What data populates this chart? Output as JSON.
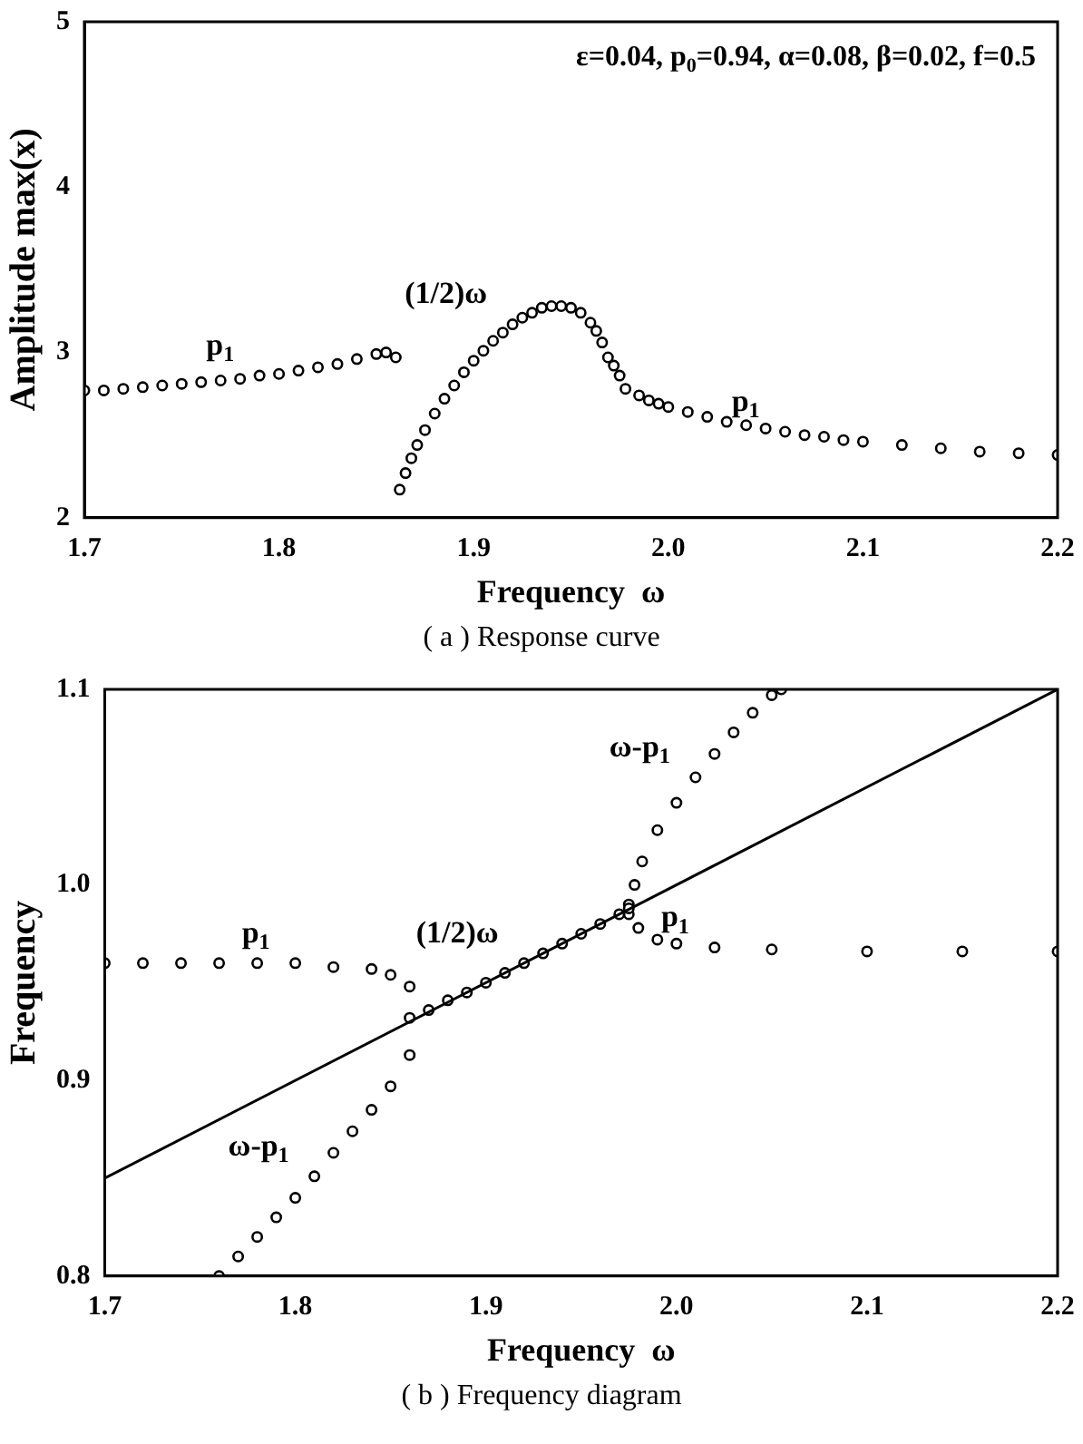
{
  "chart_data": [
    {
      "type": "scatter",
      "title": "( a )  Response curve",
      "xlabel": "Frequency  ω",
      "ylabel": "Amplitude max(x)",
      "xlim": [
        1.7,
        2.2
      ],
      "xticks": [
        1.7,
        1.8,
        1.9,
        {
          "value": 2,
          "label": "2.0"
        },
        2.1,
        2.2
      ],
      "ylim": [
        2,
        5
      ],
      "yticks": [
        2,
        3,
        4,
        5
      ],
      "grid": false,
      "legend": false,
      "marker": "circle",
      "series": [
        {
          "name": "p$_{1}$",
          "color": "#000000",
          "x": [
            1.7,
            1.71,
            1.72,
            1.73,
            1.74,
            1.75,
            1.76,
            1.77,
            1.78,
            1.79,
            1.8,
            1.81,
            1.82,
            1.83,
            1.84,
            1.85,
            1.855,
            1.86
          ],
          "values": [
            2.77,
            2.77,
            2.78,
            2.79,
            2.8,
            2.81,
            2.82,
            2.83,
            2.84,
            2.86,
            2.87,
            2.89,
            2.91,
            2.93,
            2.96,
            2.99,
            3.0,
            2.97
          ]
        },
        {
          "name": "(1/2)ω",
          "color": "#000000",
          "x": [
            1.862,
            1.865,
            1.868,
            1.871,
            1.875,
            1.88,
            1.885,
            1.89,
            1.895,
            1.9,
            1.905,
            1.91,
            1.915,
            1.92,
            1.925,
            1.93,
            1.935,
            1.94,
            1.945,
            1.95,
            1.955,
            1.96,
            1.963,
            1.966,
            1.969,
            1.972,
            1.975
          ],
          "values": [
            2.17,
            2.27,
            2.36,
            2.44,
            2.53,
            2.63,
            2.72,
            2.8,
            2.88,
            2.95,
            3.01,
            3.07,
            3.12,
            3.17,
            3.21,
            3.24,
            3.27,
            3.28,
            3.28,
            3.27,
            3.24,
            3.18,
            3.13,
            3.06,
            2.97,
            2.92,
            2.86
          ]
        },
        {
          "name": "p$_{1}$",
          "color": "#000000",
          "x": [
            1.978,
            1.985,
            1.99,
            1.995,
            2.0,
            2.01,
            2.02,
            2.03,
            2.04,
            2.05,
            2.06,
            2.07,
            2.08,
            2.09,
            2.1,
            2.12,
            2.14,
            2.16,
            2.18,
            2.2
          ],
          "values": [
            2.78,
            2.74,
            2.71,
            2.69,
            2.67,
            2.64,
            2.61,
            2.58,
            2.56,
            2.54,
            2.52,
            2.5,
            2.49,
            2.47,
            2.46,
            2.44,
            2.42,
            2.4,
            2.39,
            2.38
          ]
        }
      ],
      "annotations": [
        "ε=0.04, p$_{0}$=0.94, α=0.08, β=0.02, f=0.5"
      ]
    },
    {
      "type": "scatter",
      "title": "( b )  Frequency diagram",
      "xlabel": "Frequency  ω",
      "ylabel": "Frequency",
      "xlim": [
        1.7,
        2.2
      ],
      "xticks": [
        1.7,
        1.8,
        1.9,
        {
          "value": 2,
          "label": "2.0"
        },
        2.1,
        2.2
      ],
      "ylim": [
        0.8,
        1.1
      ],
      "yticks": [
        0.8,
        0.9,
        {
          "value": 1,
          "label": "1.0"
        },
        1.1
      ],
      "grid": false,
      "legend": false,
      "marker": "circle",
      "series": [
        {
          "type": "line",
          "marker": "none",
          "color": "#000000",
          "x": [
            1.7,
            2.2
          ],
          "values": [
            0.85,
            1.1
          ]
        },
        {
          "name": "p$_{1}$",
          "color": "#000000",
          "x": [
            1.7,
            1.72,
            1.74,
            1.76,
            1.78,
            1.8,
            1.82,
            1.84,
            1.85,
            1.86
          ],
          "values": [
            0.96,
            0.96,
            0.96,
            0.96,
            0.96,
            0.96,
            0.958,
            0.957,
            0.954,
            0.948
          ]
        },
        {
          "name": "ω-p$_{1}$",
          "color": "#000000",
          "x": [
            1.76,
            1.77,
            1.78,
            1.79,
            1.8,
            1.81,
            1.82,
            1.83,
            1.84,
            1.85,
            1.86
          ],
          "values": [
            0.8,
            0.81,
            0.82,
            0.83,
            0.84,
            0.851,
            0.863,
            0.874,
            0.885,
            0.897,
            0.913
          ]
        },
        {
          "name": "(1/2)ω",
          "color": "#000000",
          "x": [
            1.86,
            1.87,
            1.88,
            1.89,
            1.9,
            1.91,
            1.92,
            1.93,
            1.94,
            1.95,
            1.96,
            1.97,
            1.975
          ],
          "values": [
            0.932,
            0.936,
            0.941,
            0.945,
            0.95,
            0.955,
            0.96,
            0.965,
            0.97,
            0.975,
            0.98,
            0.985,
            0.988
          ]
        },
        {
          "name": "ω-p$_{1}$",
          "color": "#000000",
          "x": [
            1.975,
            1.978,
            1.982,
            1.99,
            2.0,
            2.01,
            2.02,
            2.03,
            2.04,
            2.05,
            2.055
          ],
          "values": [
            0.99,
            1.0,
            1.012,
            1.028,
            1.042,
            1.055,
            1.067,
            1.078,
            1.088,
            1.097,
            1.1
          ]
        },
        {
          "name": "p$_{1}$",
          "color": "#000000",
          "x": [
            1.975,
            1.98,
            1.99,
            2.0,
            2.02,
            2.05,
            2.1,
            2.15,
            2.2
          ],
          "values": [
            0.985,
            0.978,
            0.972,
            0.97,
            0.968,
            0.967,
            0.966,
            0.966,
            0.966
          ]
        }
      ]
    }
  ]
}
